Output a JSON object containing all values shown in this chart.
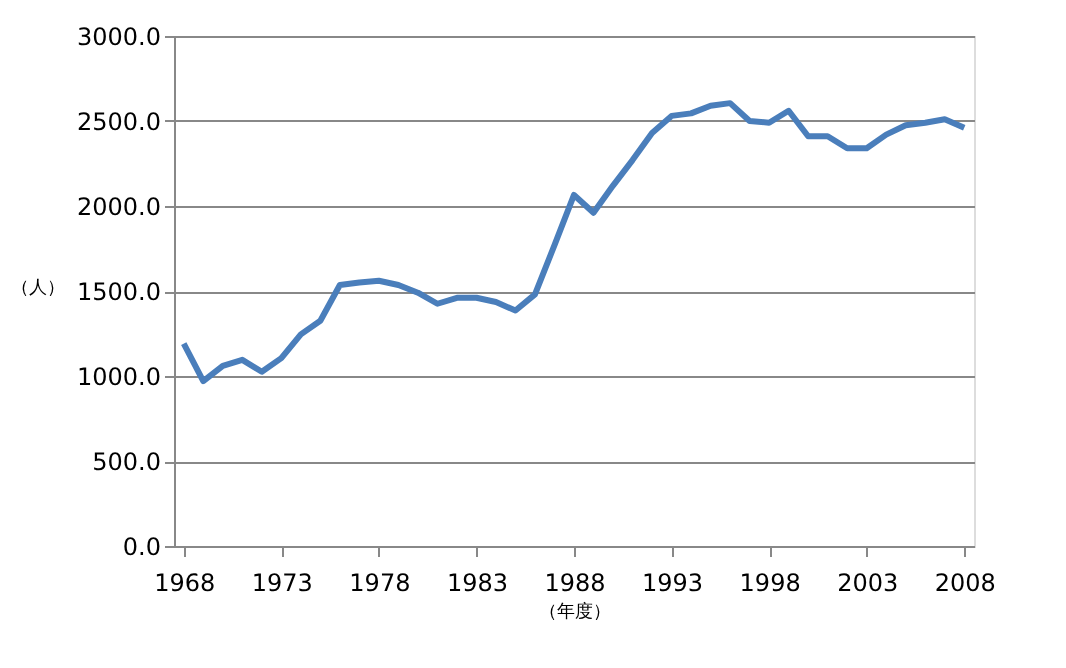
{
  "chart_data": {
    "type": "line",
    "xlabel": "（年度）",
    "ylabel": "（人）",
    "x": [
      1968,
      1969,
      1970,
      1971,
      1972,
      1973,
      1974,
      1975,
      1976,
      1977,
      1978,
      1979,
      1980,
      1981,
      1982,
      1983,
      1984,
      1985,
      1986,
      1987,
      1988,
      1989,
      1990,
      1991,
      1992,
      1993,
      1994,
      1995,
      1996,
      1997,
      1998,
      1999,
      2000,
      2001,
      2002,
      2003,
      2004,
      2005,
      2006,
      2007,
      2008
    ],
    "series": [
      {
        "color": "#4a7ebb",
        "values": [
          1190,
          970,
          1060,
          1095,
          1025,
          1105,
          1245,
          1325,
          1535,
          1550,
          1560,
          1535,
          1490,
          1425,
          1460,
          1460,
          1435,
          1385,
          1480,
          1770,
          2065,
          1960,
          2120,
          2270,
          2430,
          2530,
          2545,
          2590,
          2605,
          2500,
          2490,
          2560,
          2410,
          2410,
          2340,
          2340,
          2420,
          2475,
          2490,
          2510,
          2460
        ]
      }
    ],
    "xlim": [
      1967.5,
      2008.5
    ],
    "xticks": [
      1968,
      1973,
      1978,
      1983,
      1988,
      1993,
      1998,
      2003,
      2008
    ],
    "ylim": [
      0,
      3000
    ],
    "yticks": [
      {
        "value": 0,
        "label": "0.0"
      },
      {
        "value": 500,
        "label": "500.0"
      },
      {
        "value": 1000,
        "label": "1000.0"
      },
      {
        "value": 1500,
        "label": "1500.0"
      },
      {
        "value": 2000,
        "label": "2000.0"
      },
      {
        "value": 2500,
        "label": "2500.0"
      },
      {
        "value": 3000,
        "label": "3000.0"
      }
    ],
    "grid": "y",
    "legend": false,
    "marker": "none",
    "line_style": "solid"
  }
}
